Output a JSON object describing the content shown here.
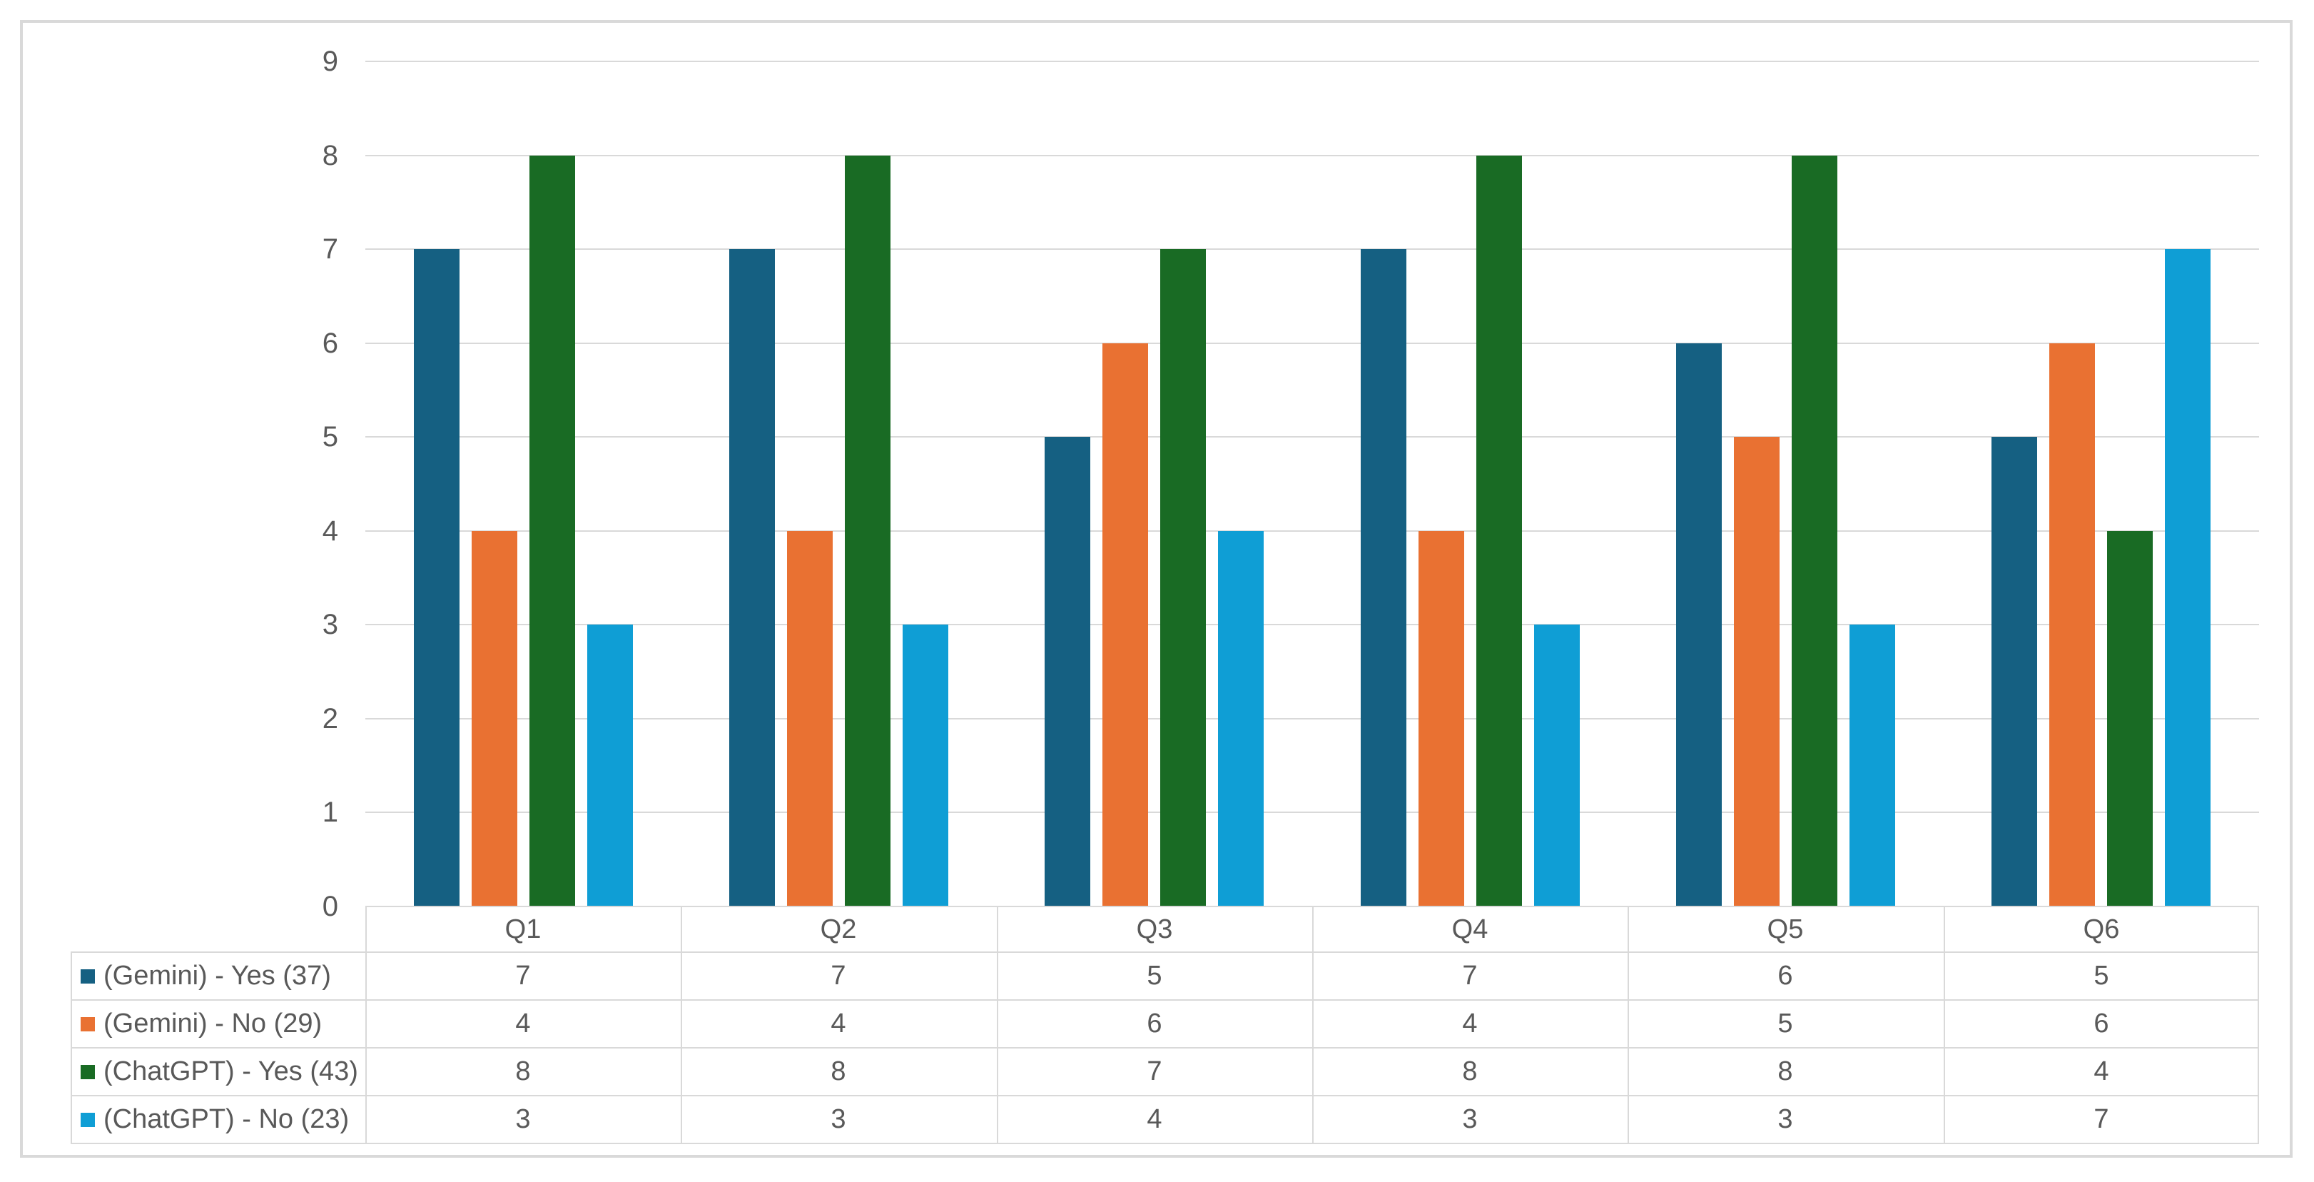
{
  "chart_data": {
    "type": "bar",
    "title": "",
    "xlabel": "",
    "ylabel": "",
    "categories": [
      "Q1",
      "Q2",
      "Q3",
      "Q4",
      "Q5",
      "Q6"
    ],
    "series": [
      {
        "name": "(Gemini) - Yes (37)",
        "color": "#156082",
        "values": [
          7,
          7,
          5,
          7,
          6,
          5
        ]
      },
      {
        "name": "(Gemini) - No (29)",
        "color": "#E97132",
        "values": [
          4,
          4,
          6,
          4,
          5,
          6
        ]
      },
      {
        "name": "(ChatGPT) - Yes (43)",
        "color": "#196B24",
        "values": [
          8,
          8,
          7,
          8,
          8,
          4
        ]
      },
      {
        "name": "(ChatGPT) - No (23)",
        "color": "#0F9ED5",
        "values": [
          3,
          3,
          4,
          3,
          3,
          7
        ]
      }
    ],
    "ylim": [
      0,
      9
    ],
    "ytick_step": 1,
    "y_tick_labels": [
      "0",
      "1",
      "2",
      "3",
      "4",
      "5",
      "6",
      "7",
      "8",
      "9"
    ],
    "grid": true,
    "legend_position": "data-table-left-column",
    "has_data_table": true
  },
  "style": {
    "grid_color": "#D9D9D9",
    "border_color": "#D9D9D9",
    "text_color": "#595959",
    "background": "#FFFFFF"
  }
}
